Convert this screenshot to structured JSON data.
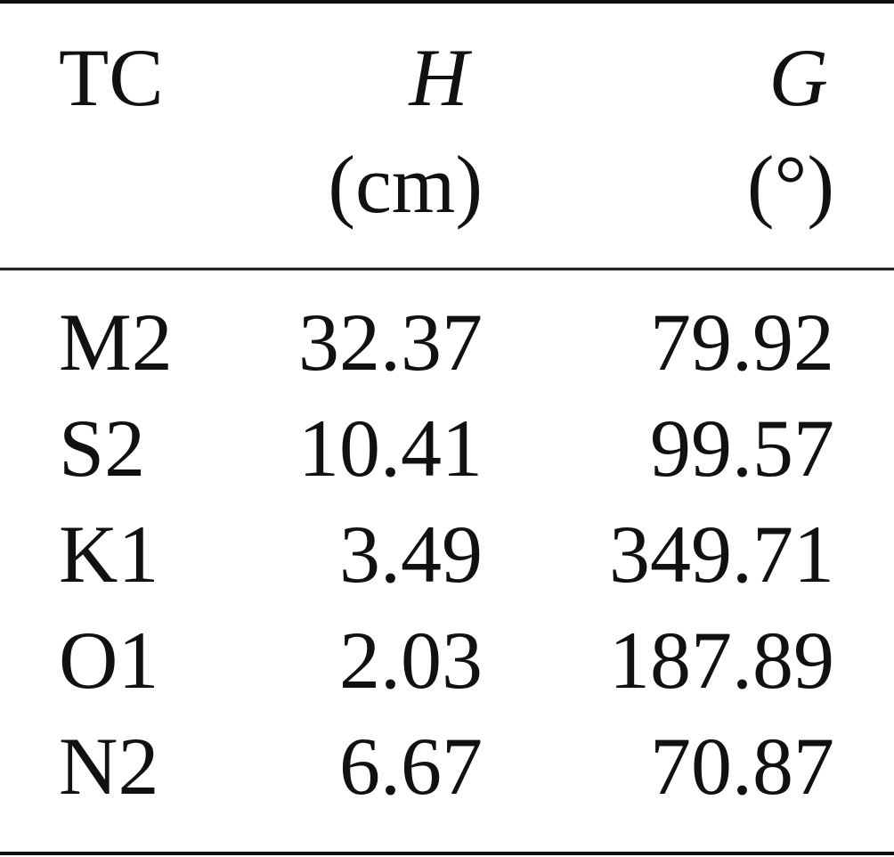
{
  "table": {
    "header": [
      {
        "label": "TC"
      },
      {
        "label": "H",
        "unit": "(cm)"
      },
      {
        "label": "G",
        "unit": "(°)"
      }
    ],
    "rows": [
      [
        "M2",
        "32.37",
        "79.92"
      ],
      [
        "S2",
        "10.41",
        "99.57"
      ],
      [
        "K1",
        "3.49",
        "349.71"
      ],
      [
        "O1",
        "2.03",
        "187.89"
      ],
      [
        "N2",
        "6.67",
        "70.87"
      ]
    ]
  }
}
